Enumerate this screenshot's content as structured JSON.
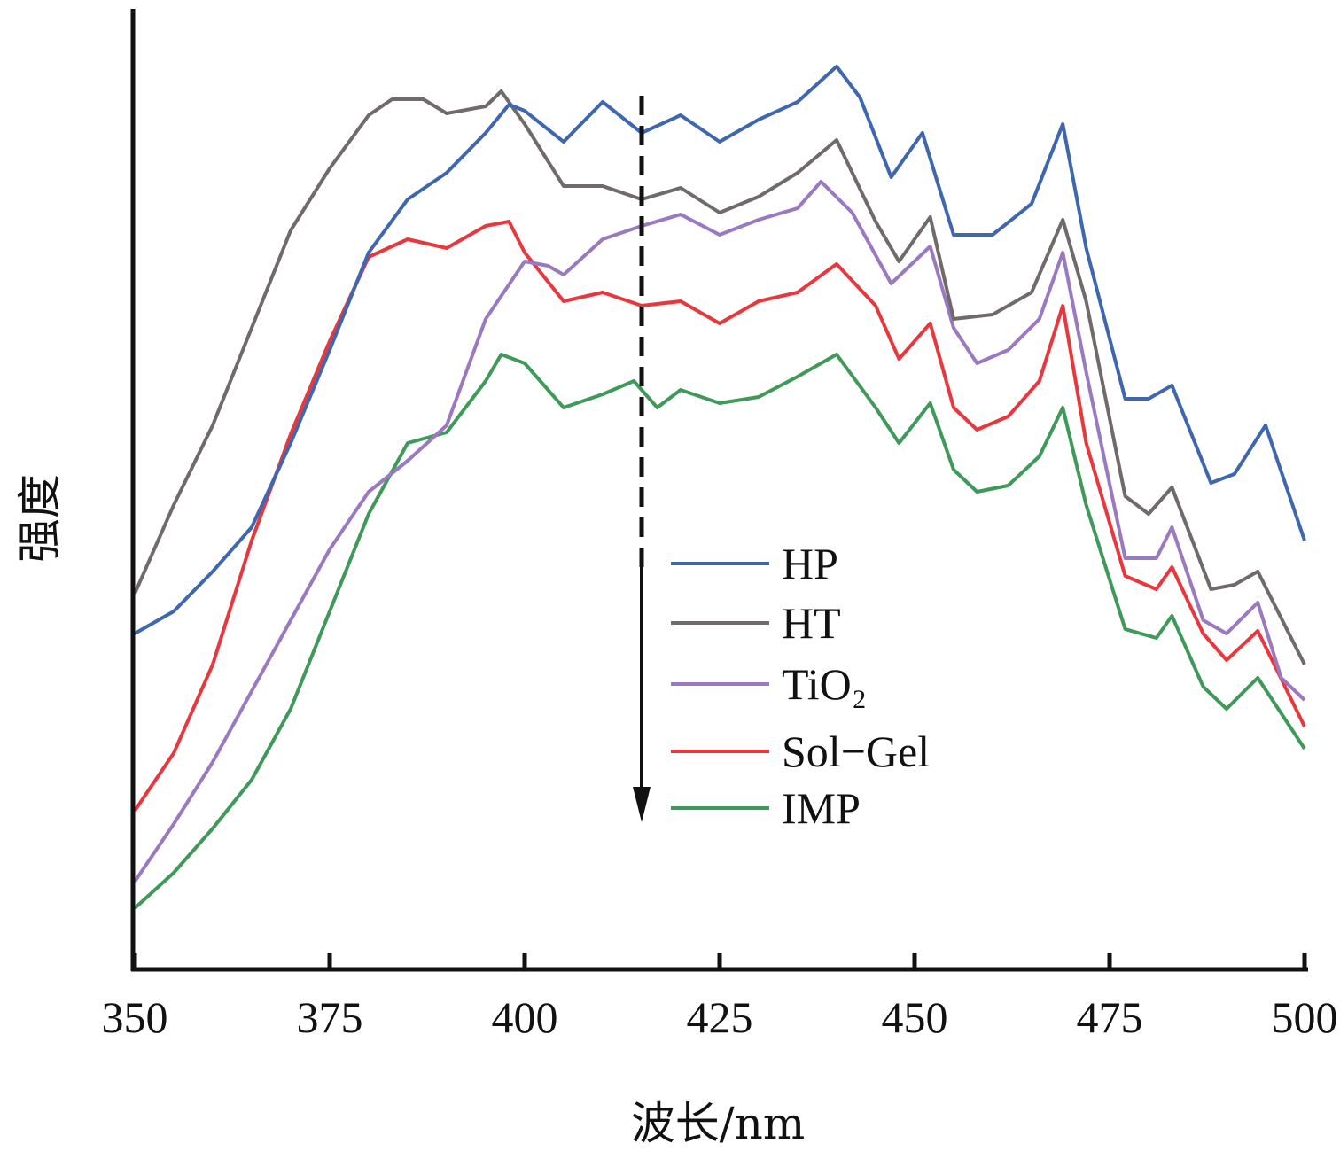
{
  "chart_data": {
    "type": "line",
    "title": "",
    "xlabel": "波长/nm",
    "ylabel": "强度",
    "xlim": [
      350,
      500
    ],
    "ylim": [
      0,
      108.3
    ],
    "y_units": "a.u. (no tick labels shown)",
    "xticks": [
      350,
      375,
      400,
      425,
      450,
      475,
      500
    ],
    "grid": false,
    "legend_position": "center-right",
    "annotation": "downward arrow indicating decreasing intensity HP → IMP",
    "series": [
      {
        "name": "HP",
        "color": "#3f67b0",
        "x": [
          350,
          355,
          360,
          365,
          370,
          375,
          380,
          385,
          390,
          395,
          398,
          400,
          405,
          410,
          415,
          420,
          425,
          430,
          435,
          440,
          443,
          447,
          451,
          455,
          460,
          465,
          469,
          472,
          477,
          480,
          483,
          488,
          491,
          495,
          500
        ],
        "y": [
          37.8,
          40.3,
          44.8,
          49.8,
          59.3,
          69.8,
          80.8,
          86.8,
          89.8,
          94.3,
          97.5,
          96.8,
          93.3,
          97.8,
          94.3,
          96.3,
          93.3,
          95.8,
          97.8,
          101.8,
          98.3,
          89.3,
          94.3,
          82.8,
          82.8,
          86.3,
          95.3,
          81.3,
          64.3,
          64.3,
          65.8,
          54.8,
          55.8,
          61.3,
          48.3
        ]
      },
      {
        "name": "HT",
        "color": "#706b6a",
        "x": [
          350,
          355,
          360,
          365,
          370,
          375,
          380,
          383,
          387,
          390,
          395,
          397,
          400,
          405,
          410,
          415,
          420,
          425,
          430,
          435,
          440,
          445,
          448,
          452,
          455,
          460,
          465,
          469,
          472,
          477,
          480,
          483,
          488,
          491,
          494,
          500
        ],
        "y": [
          42.3,
          52.3,
          61.3,
          72.3,
          83.3,
          90.3,
          96.3,
          98.1,
          98.1,
          96.5,
          97.3,
          99.0,
          95.3,
          88.3,
          88.3,
          86.8,
          88.1,
          85.3,
          87.1,
          89.8,
          93.5,
          84.3,
          79.8,
          84.8,
          73.3,
          73.8,
          76.3,
          84.5,
          75.3,
          53.3,
          51.3,
          54.3,
          42.8,
          43.3,
          44.8,
          34.3
        ]
      },
      {
        "name": "TiO₂",
        "color": "#9b79c0",
        "x": [
          350,
          355,
          360,
          365,
          370,
          375,
          380,
          385,
          390,
          395,
          400,
          403,
          405,
          410,
          415,
          420,
          425,
          430,
          435,
          438,
          442,
          447,
          452,
          455,
          458,
          462,
          466,
          469,
          472,
          477,
          481,
          483,
          487,
          490,
          494,
          497,
          500
        ],
        "y": [
          9.8,
          16.3,
          23.3,
          31.3,
          39.3,
          47.3,
          53.8,
          57.3,
          61.3,
          73.3,
          79.8,
          79.3,
          78.3,
          82.3,
          83.8,
          85.1,
          82.8,
          84.5,
          85.8,
          88.8,
          85.3,
          77.3,
          81.5,
          72.3,
          68.3,
          69.8,
          73.3,
          80.8,
          67.3,
          46.3,
          46.3,
          49.8,
          39.3,
          37.8,
          41.3,
          32.8,
          30.3
        ]
      },
      {
        "name": "Sol−Gel",
        "color": "#e8383d",
        "x": [
          350,
          355,
          360,
          365,
          370,
          375,
          380,
          385,
          390,
          395,
          398,
          400,
          405,
          410,
          415,
          420,
          425,
          430,
          435,
          440,
          445,
          448,
          452,
          455,
          458,
          462,
          466,
          469,
          472,
          477,
          481,
          483,
          487,
          490,
          494,
          500
        ],
        "y": [
          17.8,
          24.3,
          34.3,
          48.3,
          60.3,
          70.8,
          80.3,
          82.3,
          81.3,
          83.8,
          84.3,
          80.8,
          75.3,
          76.3,
          74.8,
          75.3,
          72.8,
          75.3,
          76.3,
          79.5,
          74.8,
          68.8,
          72.8,
          63.3,
          60.8,
          62.3,
          66.3,
          74.8,
          59.3,
          44.3,
          42.8,
          45.3,
          37.8,
          34.8,
          38.1,
          27.3
        ]
      },
      {
        "name": "IMP",
        "color": "#3f9a5a",
        "x": [
          350,
          355,
          360,
          365,
          370,
          375,
          380,
          385,
          390,
          395,
          397,
          400,
          405,
          410,
          414,
          417,
          420,
          425,
          430,
          435,
          440,
          445,
          448,
          452,
          455,
          458,
          462,
          466,
          469,
          472,
          477,
          481,
          483,
          487,
          490,
          494,
          500
        ],
        "y": [
          6.8,
          10.8,
          15.8,
          21.3,
          29.3,
          40.3,
          51.3,
          59.3,
          60.5,
          66.3,
          69.3,
          68.3,
          63.3,
          64.8,
          66.3,
          63.3,
          65.3,
          63.8,
          64.5,
          66.8,
          69.3,
          63.3,
          59.3,
          63.8,
          56.3,
          53.8,
          54.5,
          57.8,
          63.3,
          52.3,
          38.3,
          37.3,
          39.8,
          31.8,
          29.3,
          32.8,
          24.8
        ]
      }
    ]
  }
}
